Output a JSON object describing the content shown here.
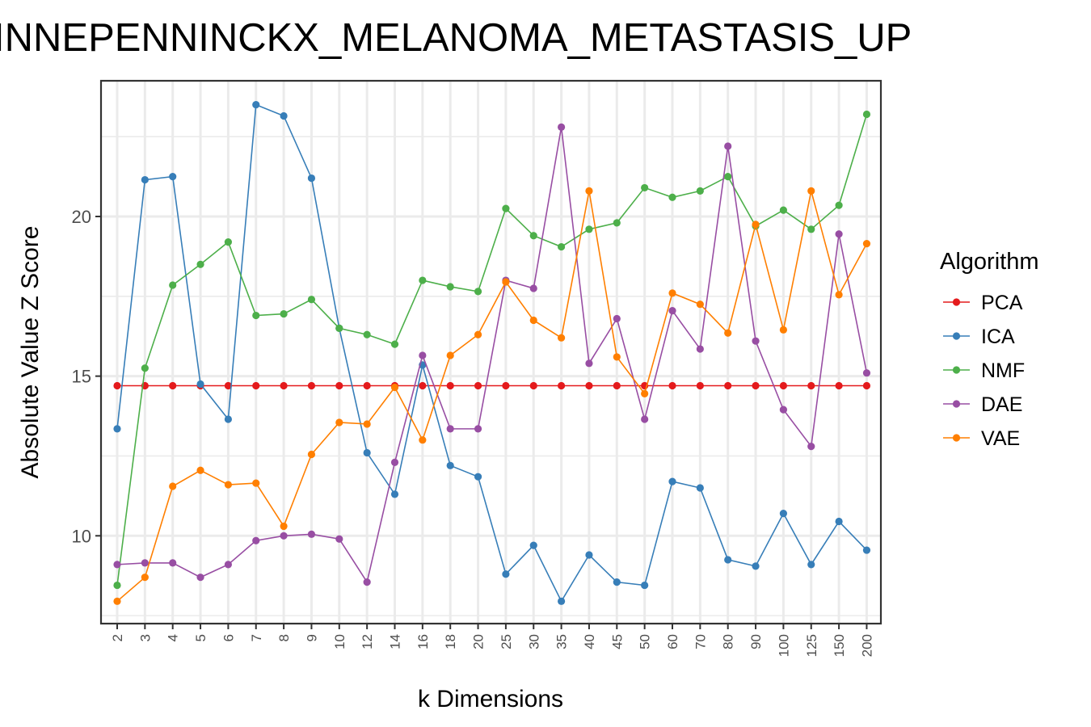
{
  "chart_data": {
    "type": "line",
    "title": "INNEPENNINCKX_MELANOMA_METASTASIS_UP",
    "xlabel": "k Dimensions",
    "ylabel": "Absolute Value Z Score",
    "categories": [
      "2",
      "3",
      "4",
      "5",
      "6",
      "7",
      "8",
      "9",
      "10",
      "12",
      "14",
      "16",
      "18",
      "20",
      "25",
      "30",
      "35",
      "40",
      "45",
      "50",
      "60",
      "70",
      "80",
      "90",
      "100",
      "125",
      "150",
      "200"
    ],
    "ylim": [
      7.25,
      24.25
    ],
    "yticks": [
      10,
      15,
      20
    ],
    "grid": true,
    "legend": {
      "title": "Algorithm",
      "position": "right"
    },
    "series": [
      {
        "name": "PCA",
        "color": "#e41a1c",
        "values": [
          14.7,
          14.7,
          14.7,
          14.7,
          14.7,
          14.7,
          14.7,
          14.7,
          14.7,
          14.7,
          14.7,
          14.7,
          14.7,
          14.7,
          14.7,
          14.7,
          14.7,
          14.7,
          14.7,
          14.7,
          14.7,
          14.7,
          14.7,
          14.7,
          14.7,
          14.7,
          14.7,
          14.7
        ]
      },
      {
        "name": "ICA",
        "color": "#377eb8",
        "values": [
          13.35,
          21.15,
          21.25,
          14.75,
          13.65,
          23.5,
          23.15,
          21.2,
          16.5,
          12.6,
          11.3,
          15.35,
          12.2,
          11.85,
          8.8,
          9.7,
          7.95,
          9.4,
          8.55,
          8.45,
          11.7,
          11.5,
          9.25,
          9.05,
          10.7,
          9.1,
          10.45,
          9.55
        ]
      },
      {
        "name": "NMF",
        "color": "#4daf4a",
        "values": [
          8.45,
          15.25,
          17.85,
          18.5,
          19.2,
          16.9,
          16.95,
          17.4,
          16.5,
          16.3,
          16.0,
          18.0,
          17.8,
          17.65,
          20.25,
          19.4,
          19.05,
          19.6,
          19.8,
          20.9,
          20.6,
          20.8,
          21.25,
          19.7,
          20.2,
          19.6,
          20.35,
          23.2
        ]
      },
      {
        "name": "DAE",
        "color": "#984ea3",
        "values": [
          9.1,
          9.15,
          9.15,
          8.7,
          9.1,
          9.85,
          10.0,
          10.05,
          9.9,
          8.55,
          12.3,
          15.65,
          13.35,
          13.35,
          18.0,
          17.75,
          22.8,
          15.4,
          16.8,
          13.65,
          17.05,
          15.85,
          22.2,
          16.1,
          13.95,
          12.8,
          19.45,
          15.1
        ]
      },
      {
        "name": "VAE",
        "color": "#ff7f00",
        "values": [
          7.95,
          8.7,
          11.55,
          12.05,
          11.6,
          11.65,
          10.3,
          12.55,
          13.55,
          13.5,
          14.65,
          13.0,
          15.65,
          16.3,
          17.95,
          16.75,
          16.2,
          20.8,
          15.6,
          14.45,
          17.6,
          17.25,
          16.35,
          19.75,
          16.45,
          20.8,
          17.55,
          19.15
        ]
      }
    ]
  }
}
